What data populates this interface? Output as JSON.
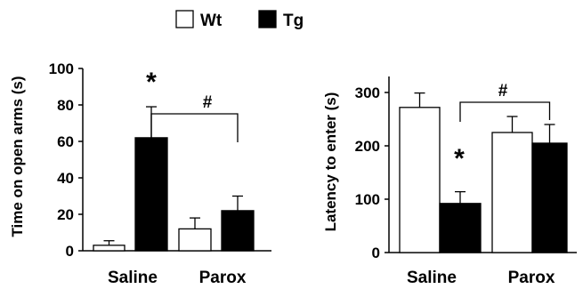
{
  "legend": [
    {
      "label": "Wt",
      "color": "#ffffff"
    },
    {
      "label": "Tg",
      "color": "#000000"
    }
  ],
  "chart_data": [
    {
      "type": "bar",
      "categories": [
        "Saline",
        "Parox"
      ],
      "series": [
        {
          "name": "Wt",
          "values": [
            3,
            12
          ],
          "errors": [
            2.5,
            6
          ]
        },
        {
          "name": "Tg",
          "values": [
            62,
            22
          ],
          "errors": [
            17,
            8
          ]
        }
      ],
      "ylabel": "Time on open arms (s)",
      "ylim": [
        0,
        100
      ],
      "yticks": [
        0,
        20,
        40,
        60,
        80,
        100
      ],
      "annotations": [
        {
          "text": "*",
          "category": "Saline",
          "series": "Tg"
        },
        {
          "text": "#",
          "bracket": {
            "from": {
              "category": "Saline",
              "series": "Tg"
            },
            "to": {
              "category": "Parox",
              "series": "Tg"
            }
          }
        }
      ]
    },
    {
      "type": "bar",
      "categories": [
        "Saline",
        "Parox"
      ],
      "series": [
        {
          "name": "Wt",
          "values": [
            272,
            225
          ],
          "errors": [
            27,
            30
          ]
        },
        {
          "name": "Tg",
          "values": [
            92,
            205
          ],
          "errors": [
            22,
            35
          ]
        }
      ],
      "ylabel": "Latency to enter (s)",
      "ylim": [
        0,
        330
      ],
      "yticks": [
        0,
        100,
        200,
        300
      ],
      "annotations": [
        {
          "text": "*",
          "category": "Saline",
          "series": "Tg"
        },
        {
          "text": "#",
          "bracket": {
            "from": {
              "category": "Saline",
              "series": "Tg"
            },
            "to": {
              "category": "Parox",
              "series": "Tg"
            }
          }
        }
      ]
    }
  ]
}
